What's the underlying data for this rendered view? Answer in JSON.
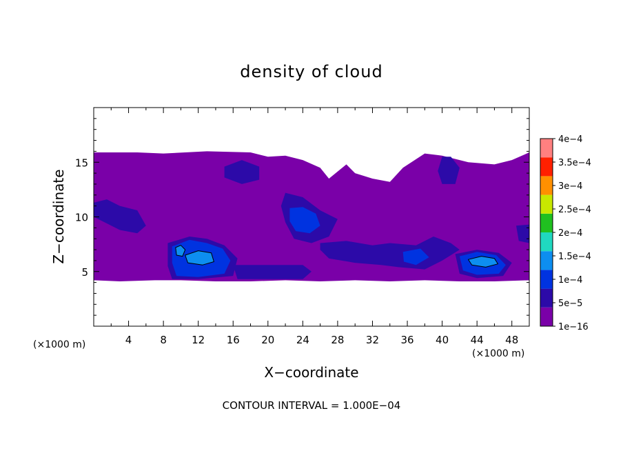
{
  "chart_data": {
    "type": "heatmap",
    "title": "density of cloud",
    "xlabel": "X−coordinate",
    "ylabel": "Z−coordinate",
    "x_unit_left": "(×1000 m)",
    "x_unit_right": "(×1000 m)",
    "xlim": [
      0,
      50
    ],
    "ylim": [
      0,
      20
    ],
    "x_ticks": [
      4,
      8,
      12,
      16,
      20,
      24,
      28,
      32,
      36,
      40,
      44,
      48
    ],
    "x_tick_labels": [
      "4",
      "8",
      "12",
      "16",
      "20",
      "24",
      "28",
      "32",
      "36",
      "40",
      "44",
      "48"
    ],
    "y_ticks": [
      5,
      10,
      15
    ],
    "y_tick_labels": [
      "5",
      "10",
      "15"
    ],
    "footer": "CONTOUR INTERVAL = 1.000E−04",
    "colorbar": {
      "labels": [
        "1e−16",
        "5e−5",
        "1e−4",
        "1.5e−4",
        "2e−4",
        "2.5e−4",
        "3e−4",
        "3.5e−4",
        "4e−4"
      ],
      "values": [
        1e-16,
        5e-05,
        0.0001,
        0.00015,
        0.0002,
        0.00025,
        0.0003,
        0.00035,
        0.0004
      ],
      "colors": [
        "#7a00a8",
        "#2c0aa8",
        "#0033e0",
        "#0d8ef0",
        "#20d8c0",
        "#20c020",
        "#c8e800",
        "#ff9000",
        "#ff2000",
        "#ff8080"
      ]
    },
    "cloud_regions": [
      {
        "level": 0,
        "points": [
          [
            0,
            15.9
          ],
          [
            5,
            15.9
          ],
          [
            8,
            15.8
          ],
          [
            13,
            16
          ],
          [
            18,
            15.9
          ],
          [
            20,
            15.5
          ],
          [
            22,
            15.6
          ],
          [
            24,
            15.2
          ],
          [
            26,
            14.5
          ],
          [
            27,
            13.5
          ],
          [
            29,
            14.8
          ],
          [
            30,
            14
          ],
          [
            32,
            13.5
          ],
          [
            34,
            13.2
          ],
          [
            35.5,
            14.5
          ],
          [
            38,
            15.8
          ],
          [
            40,
            15.6
          ],
          [
            43,
            15
          ],
          [
            46,
            14.8
          ],
          [
            48,
            15.2
          ],
          [
            50,
            15.9
          ],
          [
            50,
            4.2
          ],
          [
            46,
            4.1
          ],
          [
            42,
            4.1
          ],
          [
            38,
            4.2
          ],
          [
            34,
            4.1
          ],
          [
            30,
            4.2
          ],
          [
            26,
            4.1
          ],
          [
            22,
            4.2
          ],
          [
            18,
            4.1
          ],
          [
            14,
            4.1
          ],
          [
            10,
            4.2
          ],
          [
            7,
            4.2
          ],
          [
            3,
            4.1
          ],
          [
            0,
            4.2
          ]
        ]
      },
      {
        "level": 1,
        "points": [
          [
            0,
            11.3
          ],
          [
            1.5,
            11.6
          ],
          [
            3,
            11
          ],
          [
            5,
            10.6
          ],
          [
            6,
            9.2
          ],
          [
            5,
            8.5
          ],
          [
            3,
            8.8
          ],
          [
            1,
            9.6
          ],
          [
            0,
            10
          ]
        ]
      },
      {
        "level": 1,
        "points": [
          [
            15,
            14.6
          ],
          [
            17,
            15.2
          ],
          [
            19,
            14.6
          ],
          [
            19,
            13.4
          ],
          [
            17,
            13
          ],
          [
            15,
            13.6
          ]
        ]
      },
      {
        "level": 1,
        "points": [
          [
            22,
            12.2
          ],
          [
            24,
            11.8
          ],
          [
            26,
            10.6
          ],
          [
            28,
            9.8
          ],
          [
            27,
            8.2
          ],
          [
            25,
            7.6
          ],
          [
            23,
            8
          ],
          [
            22,
            9.5
          ],
          [
            21.5,
            11
          ]
        ]
      },
      {
        "level": 1,
        "points": [
          [
            40,
            15.5
          ],
          [
            41,
            15.5
          ],
          [
            42,
            14.5
          ],
          [
            41.5,
            13
          ],
          [
            40,
            13
          ],
          [
            39.5,
            14.2
          ]
        ]
      },
      {
        "level": 1,
        "points": [
          [
            8.5,
            7.6
          ],
          [
            11,
            8.2
          ],
          [
            13,
            8
          ],
          [
            15,
            7.4
          ],
          [
            16.5,
            6.2
          ],
          [
            16,
            4.6
          ],
          [
            12,
            4.3
          ],
          [
            9,
            4.3
          ],
          [
            8.5,
            5.5
          ]
        ]
      },
      {
        "level": 1,
        "points": [
          [
            16,
            5.6
          ],
          [
            20,
            5.6
          ],
          [
            24,
            5.6
          ],
          [
            25,
            5
          ],
          [
            24,
            4.3
          ],
          [
            20,
            4.3
          ],
          [
            16.5,
            4.3
          ]
        ]
      },
      {
        "level": 1,
        "points": [
          [
            26,
            7.6
          ],
          [
            29,
            7.8
          ],
          [
            32,
            7.4
          ],
          [
            34,
            7.6
          ],
          [
            37,
            7.4
          ],
          [
            39,
            8.2
          ],
          [
            41,
            7.6
          ],
          [
            42,
            7
          ],
          [
            40,
            6
          ],
          [
            38,
            5.2
          ],
          [
            35,
            5.4
          ],
          [
            33,
            5.6
          ],
          [
            30,
            5.8
          ],
          [
            27,
            6.2
          ],
          [
            26,
            7
          ]
        ]
      },
      {
        "level": 1,
        "points": [
          [
            41.5,
            6.6
          ],
          [
            44,
            7
          ],
          [
            46.5,
            6.7
          ],
          [
            48,
            5.8
          ],
          [
            47,
            4.6
          ],
          [
            44,
            4.4
          ],
          [
            42,
            4.8
          ]
        ]
      },
      {
        "level": 1,
        "points": [
          [
            48.5,
            9.2
          ],
          [
            50,
            9.3
          ],
          [
            50,
            7.6
          ],
          [
            48.8,
            7.8
          ]
        ]
      },
      {
        "level": 2,
        "points": [
          [
            9,
            7.3
          ],
          [
            11,
            7.9
          ],
          [
            13,
            7.6
          ],
          [
            14.8,
            7.1
          ],
          [
            15.7,
            6
          ],
          [
            15,
            4.8
          ],
          [
            12,
            4.5
          ],
          [
            9.5,
            4.6
          ],
          [
            9,
            5.8
          ]
        ]
      },
      {
        "level": 2,
        "points": [
          [
            22.5,
            10.8
          ],
          [
            24,
            10.9
          ],
          [
            25.5,
            10.3
          ],
          [
            26,
            9.2
          ],
          [
            24.8,
            8.5
          ],
          [
            23.2,
            8.7
          ],
          [
            22.5,
            9.6
          ]
        ]
      },
      {
        "level": 2,
        "points": [
          [
            42,
            6.4
          ],
          [
            44,
            6.8
          ],
          [
            46.2,
            6.5
          ],
          [
            47.3,
            5.6
          ],
          [
            46.5,
            4.8
          ],
          [
            44,
            4.7
          ],
          [
            42.4,
            5.1
          ]
        ]
      },
      {
        "level": 2,
        "points": [
          [
            35.5,
            6.8
          ],
          [
            37.5,
            7.1
          ],
          [
            38.5,
            6.3
          ],
          [
            37,
            5.6
          ],
          [
            35.6,
            5.9
          ]
        ]
      },
      {
        "level": 3,
        "points": [
          [
            9.4,
            7.2
          ],
          [
            10,
            7.4
          ],
          [
            10.5,
            7
          ],
          [
            10.2,
            6.4
          ],
          [
            9.5,
            6.5
          ]
        ]
      },
      {
        "level": 3,
        "points": [
          [
            10.5,
            6.5
          ],
          [
            12,
            6.9
          ],
          [
            13.5,
            6.7
          ],
          [
            13.8,
            5.9
          ],
          [
            12.5,
            5.6
          ],
          [
            10.8,
            5.8
          ]
        ]
      },
      {
        "level": 3,
        "points": [
          [
            43,
            6.1
          ],
          [
            44.5,
            6.4
          ],
          [
            46,
            6.2
          ],
          [
            46.4,
            5.7
          ],
          [
            45,
            5.4
          ],
          [
            43.4,
            5.6
          ]
        ]
      }
    ]
  }
}
